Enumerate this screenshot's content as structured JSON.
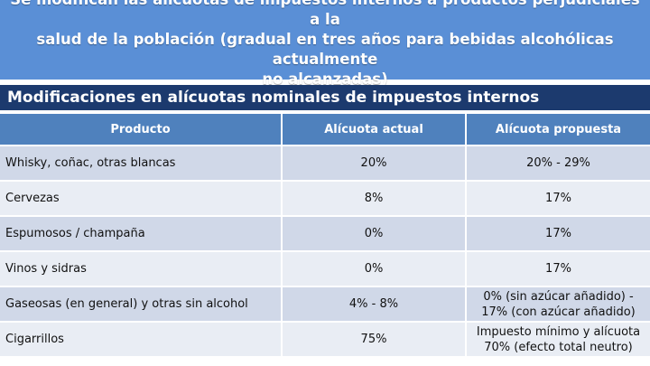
{
  "banner": {
    "line1": "Se modifican las alícuotas de impuestos internos a productos perjudiciales a la",
    "line2": "salud de la población (gradual en tres años para bebidas alcohólicas actualmente",
    "line3": "no alcanzadas)"
  },
  "subtitle": "Modificaciones en alícuotas nominales de impuestos internos",
  "table": {
    "headers": [
      "Producto",
      "Alícuota actual",
      "Alícuota propuesta"
    ],
    "rows": [
      {
        "product": "Whisky, coñac, otras blancas",
        "current": "20%",
        "proposed": "20% - 29%"
      },
      {
        "product": "Cervezas",
        "current": "8%",
        "proposed": "17%"
      },
      {
        "product": "Espumosos / champaña",
        "current": "0%",
        "proposed": "17%"
      },
      {
        "product": "Vinos y sidras",
        "current": "0%",
        "proposed": "17%"
      },
      {
        "product": "Gaseosas (en general) y otras sin alcohol",
        "current": "4% - 8%",
        "proposed_line1": "0% (sin azúcar añadido) -",
        "proposed_line2": "17% (con azúcar añadido)"
      },
      {
        "product": "Cigarrillos",
        "current": "75%",
        "proposed_line1": "Impuesto mínimo y alícuota",
        "proposed_line2": "70% (efecto total neutro)"
      }
    ]
  },
  "colors": {
    "banner": "#5a8fd6",
    "subtitle": "#1c3a6e",
    "header": "#4f81bd",
    "row_odd": "#d0d8e8",
    "row_even": "#e9edf4"
  }
}
